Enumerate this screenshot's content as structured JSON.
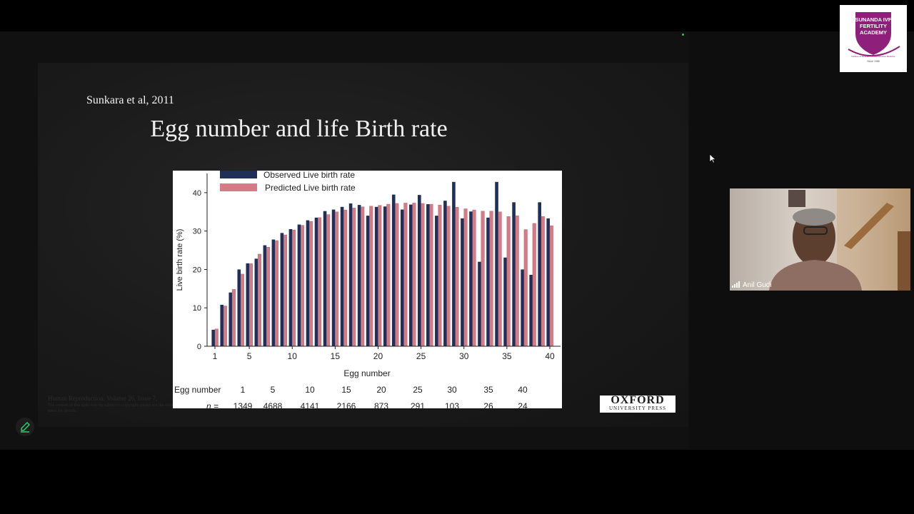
{
  "slide": {
    "author": "Sunkara et al, 2011",
    "title": "Egg number and life Birth rate",
    "footnote_line1": "Human Reproduction, Volume 26, Issue 7,",
    "footnote_line2": "The content of this slide may be subject to copyright: please see the slide notes for details.",
    "publisher_name": "OXFORD",
    "publisher_sub": "UNIVERSITY PRESS"
  },
  "video": {
    "participant_name": "Anil Gudi"
  },
  "academy_logo": {
    "line1": "SUNANDA IVF",
    "line2": "FERTILITY",
    "line3": "ACADEMY",
    "tagline": "Institute of Research & Reproductive Medicine",
    "since": "Since 1988"
  },
  "colors": {
    "observed": "#1f2f57",
    "predicted": "#d47b85",
    "logo_purple": "#8e1f7a"
  },
  "chart_data": {
    "type": "bar",
    "xlabel": "Egg number",
    "ylabel": "Live birth rate (%)",
    "ylim": [
      0,
      45
    ],
    "yticks": [
      0,
      10,
      20,
      30,
      40
    ],
    "xticks": [
      1,
      5,
      10,
      15,
      20,
      25,
      30,
      35,
      40
    ],
    "legend_position": "top-left",
    "x": [
      1,
      2,
      3,
      4,
      5,
      6,
      7,
      8,
      9,
      10,
      11,
      12,
      13,
      14,
      15,
      16,
      17,
      18,
      19,
      20,
      21,
      22,
      23,
      24,
      25,
      26,
      27,
      28,
      29,
      30,
      31,
      32,
      33,
      34,
      35,
      36,
      37,
      38,
      39,
      40
    ],
    "series": [
      {
        "name": "Observed Live birth rate",
        "values": [
          4.3,
          10.8,
          14.0,
          20.0,
          21.6,
          22.8,
          26.3,
          27.8,
          29.5,
          30.5,
          31.7,
          32.8,
          33.5,
          35.2,
          35.6,
          36.3,
          37.2,
          36.8,
          34.0,
          36.3,
          36.4,
          39.5,
          35.6,
          36.9,
          39.4,
          37.0,
          34.0,
          37.9,
          42.8,
          33.3,
          35.1,
          22.0,
          33.5,
          42.8,
          23.1,
          37.5,
          20.0,
          18.6,
          37.5,
          33.3
        ]
      },
      {
        "name": "Predicted Live birth rate",
        "values": [
          4.5,
          10.5,
          14.8,
          18.8,
          21.5,
          24.0,
          25.8,
          27.5,
          29.0,
          30.3,
          31.5,
          32.5,
          33.5,
          34.3,
          35.0,
          35.5,
          36.0,
          36.3,
          36.5,
          36.7,
          37.0,
          37.2,
          37.3,
          37.3,
          37.2,
          37.0,
          36.8,
          36.5,
          36.2,
          35.8,
          35.5,
          35.2,
          35.2,
          35.0,
          33.8,
          34.0,
          30.4,
          32.0,
          33.8,
          31.4
        ]
      }
    ],
    "table": {
      "header": "Egg number",
      "n_label": "n",
      "egg_numbers": [
        "1",
        "5",
        "10",
        "15",
        "20",
        "25",
        "30",
        "35",
        "40"
      ],
      "n_values": [
        "1349",
        "4688",
        "4141",
        "2166",
        "873",
        "291",
        "103",
        "26",
        "24"
      ]
    }
  }
}
